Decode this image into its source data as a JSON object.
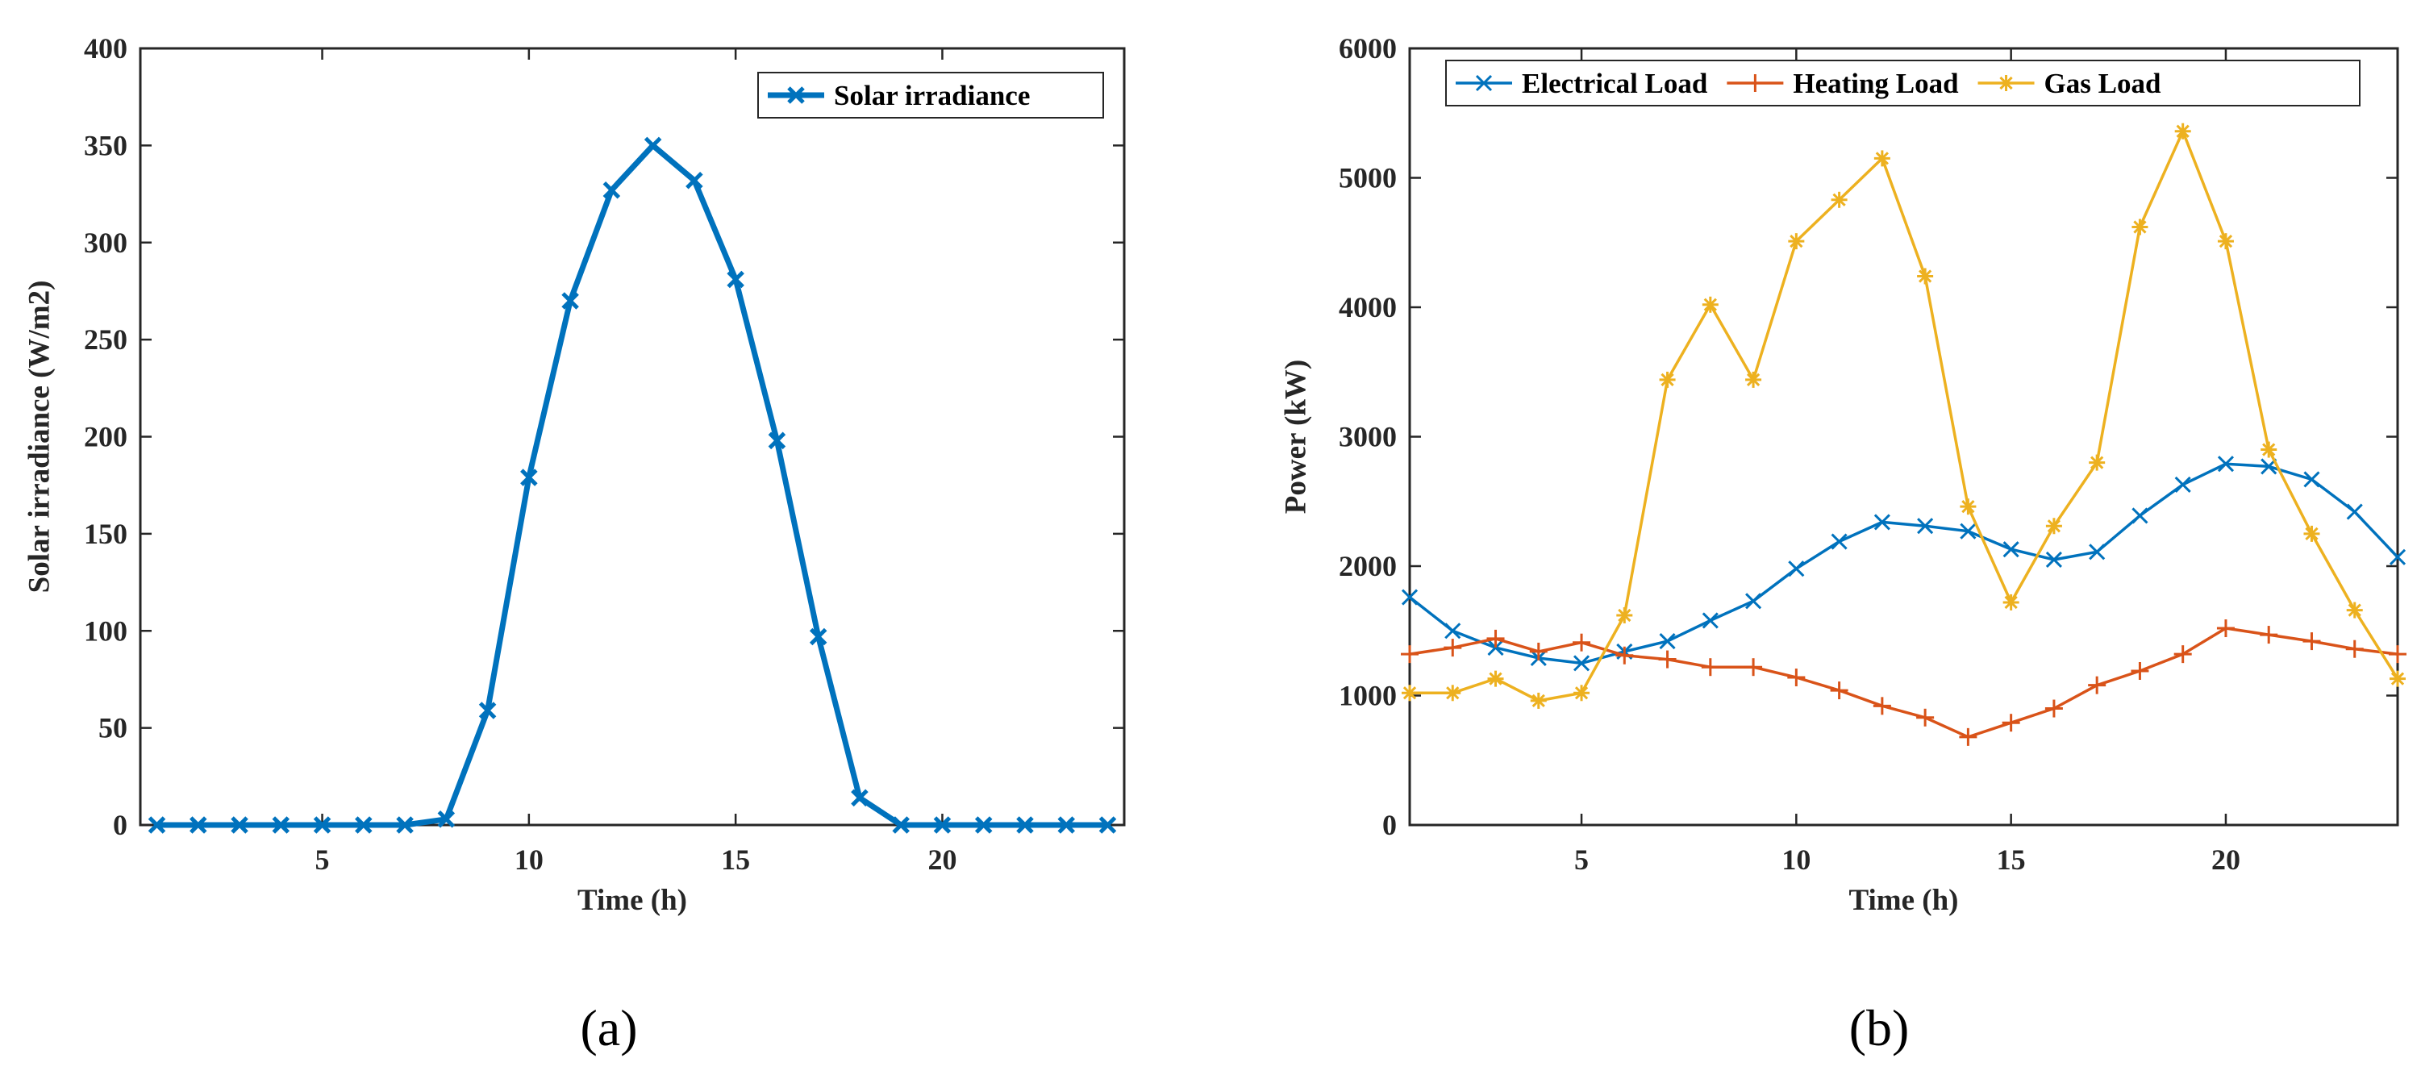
{
  "chart_data": [
    {
      "type": "line",
      "panel_label": "(a)",
      "title": "",
      "xlabel": "Time (h)",
      "ylabel": "Solar irradiance (W/m2)",
      "xlim": [
        0.6,
        24.4
      ],
      "ylim": [
        0,
        400
      ],
      "xticks": [
        5,
        10,
        15,
        20
      ],
      "yticks": [
        0,
        50,
        100,
        150,
        200,
        250,
        300,
        350,
        400
      ],
      "legend_position": "top-right",
      "x": [
        1,
        2,
        3,
        4,
        5,
        6,
        7,
        8,
        9,
        10,
        11,
        12,
        13,
        14,
        15,
        16,
        17,
        18,
        19,
        20,
        21,
        22,
        23,
        24
      ],
      "series": [
        {
          "name": "Solar irradiance",
          "color": "#0072BD",
          "marker": "x",
          "values": [
            0,
            0,
            0,
            0,
            0,
            0,
            0,
            3,
            59,
            179,
            270,
            327,
            350,
            332,
            281,
            198,
            97,
            14,
            0,
            0,
            0,
            0,
            0,
            0
          ]
        }
      ]
    },
    {
      "type": "line",
      "panel_label": "(b)",
      "title": "",
      "xlabel": "Time (h)",
      "ylabel": "Power (kW)",
      "xlim": [
        1,
        24
      ],
      "ylim": [
        0,
        6000
      ],
      "xticks": [
        5,
        10,
        15,
        20
      ],
      "yticks": [
        0,
        1000,
        2000,
        3000,
        4000,
        5000,
        6000
      ],
      "legend_position": "top",
      "x": [
        1,
        2,
        3,
        4,
        5,
        6,
        7,
        8,
        9,
        10,
        11,
        12,
        13,
        14,
        15,
        16,
        17,
        18,
        19,
        20,
        21,
        22,
        23,
        24
      ],
      "series": [
        {
          "name": "Electrical Load",
          "color": "#0072BD",
          "marker": "x",
          "values": [
            1760,
            1500,
            1370,
            1290,
            1250,
            1340,
            1420,
            1580,
            1730,
            1980,
            2190,
            2340,
            2310,
            2270,
            2130,
            2050,
            2110,
            2390,
            2630,
            2790,
            2770,
            2670,
            2420,
            2070
          ]
        },
        {
          "name": "Heating Load",
          "color": "#D95319",
          "marker": "+",
          "values": [
            1320,
            1370,
            1440,
            1340,
            1410,
            1310,
            1280,
            1220,
            1220,
            1140,
            1040,
            920,
            830,
            680,
            790,
            900,
            1080,
            1190,
            1320,
            1520,
            1470,
            1420,
            1360,
            1320
          ]
        },
        {
          "name": "Gas Load",
          "color": "#EDB120",
          "marker": "*",
          "values": [
            1020,
            1020,
            1130,
            960,
            1020,
            1620,
            3440,
            4020,
            3440,
            4510,
            4830,
            5150,
            4240,
            2460,
            1720,
            2310,
            2800,
            4620,
            5360,
            4510,
            2900,
            2250,
            1660,
            1130
          ]
        }
      ]
    }
  ]
}
